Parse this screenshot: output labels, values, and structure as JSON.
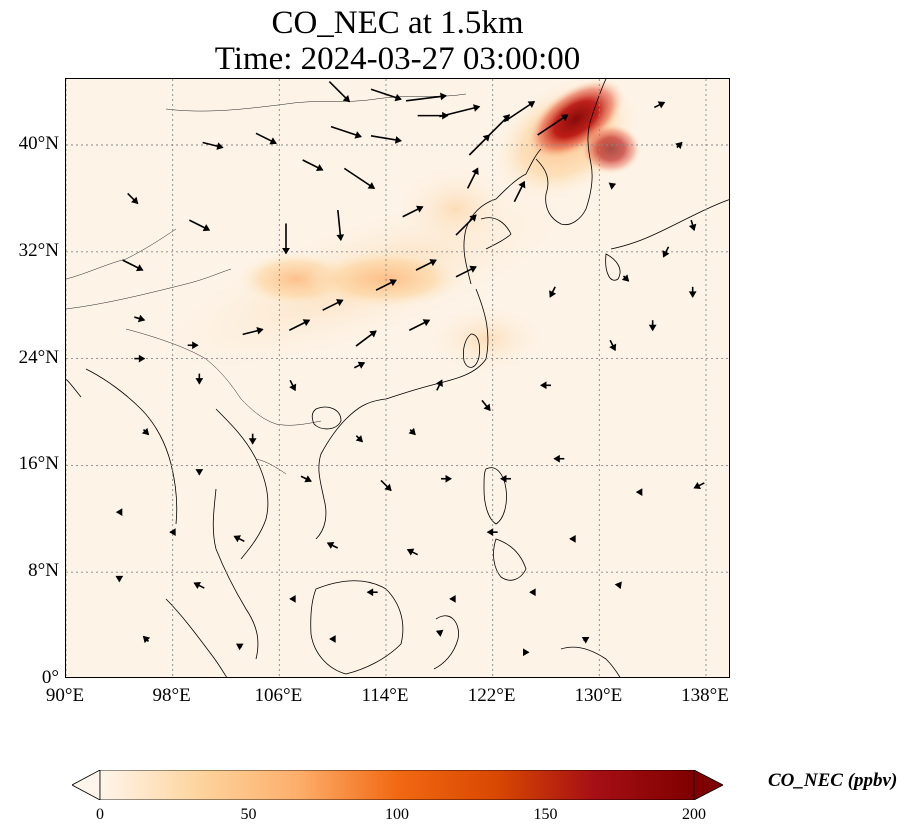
{
  "title_line1": "CO_NEC at 1.5km",
  "title_line2": "Time: 2024-03-27 03:00:00",
  "map": {
    "lon_range": [
      90,
      140
    ],
    "lat_range": [
      0,
      45
    ],
    "lat_ticks": [
      {
        "value": 40,
        "label": "40°N"
      },
      {
        "value": 32,
        "label": "32°N"
      },
      {
        "value": 24,
        "label": "24°N"
      },
      {
        "value": 16,
        "label": "16°N"
      },
      {
        "value": 8,
        "label": "8°N"
      },
      {
        "value": 0,
        "label": "0°"
      }
    ],
    "lon_ticks": [
      {
        "value": 90,
        "label": "90°E"
      },
      {
        "value": 98,
        "label": "98°E"
      },
      {
        "value": 106,
        "label": "106°E"
      },
      {
        "value": 114,
        "label": "114°E"
      },
      {
        "value": 122,
        "label": "122°E"
      },
      {
        "value": 130,
        "label": "130°E"
      },
      {
        "value": 138,
        "label": "138°E"
      }
    ],
    "gridlines": true,
    "plume": [
      {
        "lon": 126.5,
        "lat": 43.5,
        "conc": 190
      },
      {
        "lon": 124.5,
        "lat": 41.5,
        "conc": 150
      },
      {
        "lon": 127.5,
        "lat": 40.5,
        "conc": 120
      },
      {
        "lon": 119.0,
        "lat": 37.0,
        "conc": 45
      },
      {
        "lon": 111.0,
        "lat": 31.5,
        "conc": 40
      },
      {
        "lon": 104.5,
        "lat": 30.0,
        "conc": 40
      },
      {
        "lon": 118.0,
        "lat": 29.0,
        "conc": 30
      }
    ],
    "wind_vectors": [
      {
        "lon": 110.5,
        "lat": 44.0,
        "u": 2,
        "v": -2
      },
      {
        "lon": 114.0,
        "lat": 43.8,
        "u": 3,
        "v": -1
      },
      {
        "lon": 117.0,
        "lat": 43.5,
        "u": 4,
        "v": 0.5
      },
      {
        "lon": 119.5,
        "lat": 42.5,
        "u": 4,
        "v": 1
      },
      {
        "lon": 117.5,
        "lat": 42.2,
        "u": 3,
        "v": 0
      },
      {
        "lon": 111.0,
        "lat": 41.0,
        "u": 3,
        "v": -1
      },
      {
        "lon": 114.0,
        "lat": 40.5,
        "u": 3,
        "v": -0.5
      },
      {
        "lon": 121.0,
        "lat": 40.0,
        "u": 2,
        "v": 2
      },
      {
        "lon": 122.5,
        "lat": 41.5,
        "u": 2,
        "v": 2
      },
      {
        "lon": 124.0,
        "lat": 42.5,
        "u": 3,
        "v": 2
      },
      {
        "lon": 126.5,
        "lat": 41.5,
        "u": 3,
        "v": 2
      },
      {
        "lon": 105.0,
        "lat": 40.5,
        "u": 2,
        "v": -1
      },
      {
        "lon": 101.0,
        "lat": 40.0,
        "u": 2,
        "v": -0.5
      },
      {
        "lon": 108.5,
        "lat": 38.5,
        "u": 2,
        "v": -1
      },
      {
        "lon": 112.0,
        "lat": 37.5,
        "u": 3,
        "v": -2
      },
      {
        "lon": 106.5,
        "lat": 33.0,
        "u": 0,
        "v": -3
      },
      {
        "lon": 110.5,
        "lat": 34.0,
        "u": 0.3,
        "v": -3
      },
      {
        "lon": 100.0,
        "lat": 34.0,
        "u": 2,
        "v": -1
      },
      {
        "lon": 95.0,
        "lat": 31.0,
        "u": 2,
        "v": -1
      },
      {
        "lon": 95.0,
        "lat": 36.0,
        "u": 1,
        "v": -1
      },
      {
        "lon": 116.0,
        "lat": 35.0,
        "u": 2,
        "v": 1
      },
      {
        "lon": 120.0,
        "lat": 34.0,
        "u": 2,
        "v": 2
      },
      {
        "lon": 120.5,
        "lat": 37.5,
        "u": 1,
        "v": 2
      },
      {
        "lon": 124.0,
        "lat": 36.5,
        "u": 1,
        "v": 2
      },
      {
        "lon": 110.0,
        "lat": 28.0,
        "u": 2,
        "v": 1
      },
      {
        "lon": 114.0,
        "lat": 29.5,
        "u": 2,
        "v": 1
      },
      {
        "lon": 117.0,
        "lat": 31.0,
        "u": 2,
        "v": 1
      },
      {
        "lon": 120.0,
        "lat": 30.5,
        "u": 2,
        "v": 1
      },
      {
        "lon": 104.0,
        "lat": 26.0,
        "u": 2,
        "v": 0.5
      },
      {
        "lon": 107.5,
        "lat": 26.5,
        "u": 2,
        "v": 1
      },
      {
        "lon": 112.5,
        "lat": 25.5,
        "u": 2,
        "v": 1.5
      },
      {
        "lon": 116.5,
        "lat": 26.5,
        "u": 2,
        "v": 1
      },
      {
        "lon": 99.5,
        "lat": 25.0,
        "u": 1,
        "v": 0
      },
      {
        "lon": 95.5,
        "lat": 27.0,
        "u": 1,
        "v": -0.3
      },
      {
        "lon": 95.5,
        "lat": 24.0,
        "u": 1,
        "v": 0
      },
      {
        "lon": 100.0,
        "lat": 22.5,
        "u": 0,
        "v": -1
      },
      {
        "lon": 107.0,
        "lat": 22.0,
        "u": 0.5,
        "v": -1
      },
      {
        "lon": 112.0,
        "lat": 23.5,
        "u": 1,
        "v": 0.5
      },
      {
        "lon": 118.0,
        "lat": 22.0,
        "u": 0.5,
        "v": 1
      },
      {
        "lon": 121.5,
        "lat": 20.5,
        "u": 0.8,
        "v": -1
      },
      {
        "lon": 126.0,
        "lat": 22.0,
        "u": -1,
        "v": 0
      },
      {
        "lon": 131.0,
        "lat": 25.0,
        "u": 0.5,
        "v": -1
      },
      {
        "lon": 134.0,
        "lat": 26.5,
        "u": 0,
        "v": -1
      },
      {
        "lon": 137.0,
        "lat": 29.0,
        "u": 0,
        "v": -1
      },
      {
        "lon": 132.0,
        "lat": 30.0,
        "u": 0.5,
        "v": -0.5
      },
      {
        "lon": 137.0,
        "lat": 34.0,
        "u": 0.3,
        "v": -1
      },
      {
        "lon": 135.0,
        "lat": 32.0,
        "u": -0.5,
        "v": -1
      },
      {
        "lon": 126.5,
        "lat": 29.0,
        "u": -0.5,
        "v": -1
      },
      {
        "lon": 116.0,
        "lat": 18.5,
        "u": 0.5,
        "v": -0.5
      },
      {
        "lon": 112.0,
        "lat": 18.0,
        "u": 0.6,
        "v": -0.6
      },
      {
        "lon": 104.0,
        "lat": 18.0,
        "u": 0,
        "v": -1
      },
      {
        "lon": 96.0,
        "lat": 18.5,
        "u": 0.5,
        "v": -0.5
      },
      {
        "lon": 100.0,
        "lat": 15.5,
        "u": 0,
        "v": -0.5
      },
      {
        "lon": 108.0,
        "lat": 15.0,
        "u": 1,
        "v": -0.5
      },
      {
        "lon": 114.0,
        "lat": 14.5,
        "u": 1,
        "v": -1
      },
      {
        "lon": 118.5,
        "lat": 15.0,
        "u": 1,
        "v": 0
      },
      {
        "lon": 123.0,
        "lat": 15.0,
        "u": -1,
        "v": 0
      },
      {
        "lon": 127.0,
        "lat": 16.5,
        "u": -1,
        "v": 0
      },
      {
        "lon": 133.0,
        "lat": 14.0,
        "u": -0.5,
        "v": 0
      },
      {
        "lon": 137.5,
        "lat": 14.5,
        "u": -1,
        "v": -0.5
      },
      {
        "lon": 94.0,
        "lat": 12.5,
        "u": -0.5,
        "v": 0
      },
      {
        "lon": 98.0,
        "lat": 11.0,
        "u": -0.5,
        "v": 0
      },
      {
        "lon": 103.0,
        "lat": 10.5,
        "u": -1,
        "v": 0.5
      },
      {
        "lon": 110.0,
        "lat": 10.0,
        "u": -1,
        "v": 0.5
      },
      {
        "lon": 116.0,
        "lat": 9.5,
        "u": -1,
        "v": 0.5
      },
      {
        "lon": 122.0,
        "lat": 11.0,
        "u": -1,
        "v": 0
      },
      {
        "lon": 128.0,
        "lat": 10.5,
        "u": -0.5,
        "v": 0
      },
      {
        "lon": 94.0,
        "lat": 7.5,
        "u": 0,
        "v": -0.5
      },
      {
        "lon": 100.0,
        "lat": 7.0,
        "u": -1,
        "v": 0.5
      },
      {
        "lon": 107.0,
        "lat": 6.0,
        "u": -0.5,
        "v": 0
      },
      {
        "lon": 113.0,
        "lat": 6.5,
        "u": -1,
        "v": 0
      },
      {
        "lon": 119.0,
        "lat": 6.0,
        "u": -0.5,
        "v": 0
      },
      {
        "lon": 125.0,
        "lat": 6.5,
        "u": -0.5,
        "v": 0
      },
      {
        "lon": 131.5,
        "lat": 7.0,
        "u": 0.2,
        "v": -0.5
      },
      {
        "lon": 96.0,
        "lat": 3.0,
        "u": -0.5,
        "v": 0.5
      },
      {
        "lon": 103.0,
        "lat": 2.5,
        "u": -0.5,
        "v": 0.3
      },
      {
        "lon": 110.0,
        "lat": 3.0,
        "u": -0.5,
        "v": 0
      },
      {
        "lon": 118.0,
        "lat": 3.5,
        "u": -0.5,
        "v": 0.2
      },
      {
        "lon": 124.5,
        "lat": 2.0,
        "u": 0.5,
        "v": 0
      },
      {
        "lon": 129.0,
        "lat": 3.0,
        "u": 0.5,
        "v": 0.3
      },
      {
        "lon": 136.0,
        "lat": 40.0,
        "u": 0.5,
        "v": 0.5
      },
      {
        "lon": 134.5,
        "lat": 43.0,
        "u": 1,
        "v": 0.5
      },
      {
        "lon": 131.0,
        "lat": 37.0,
        "u": 0.5,
        "v": 0.2
      }
    ]
  },
  "colorbar": {
    "label": "CO_NEC (ppbv)",
    "min": 0,
    "max": 200,
    "ticks": [
      "0",
      "50",
      "100",
      "150",
      "200"
    ],
    "colors": [
      "#fff5eb",
      "#fdd49e",
      "#fdae6b",
      "#f16913",
      "#d94801",
      "#a50f15",
      "#7f0000"
    ],
    "extend": "both"
  }
}
